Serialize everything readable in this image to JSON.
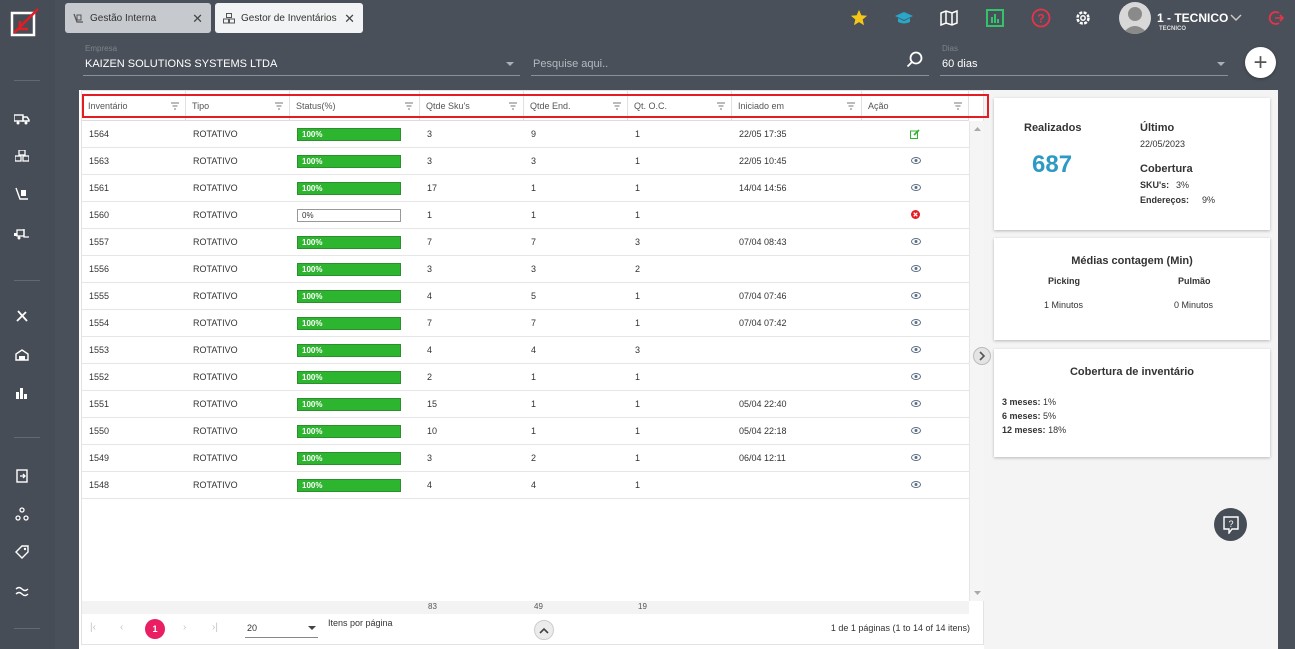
{
  "tabs": [
    {
      "label": "Gestão Interna",
      "active": false,
      "icon": "hand-truck-icon"
    },
    {
      "label": "Gestor de Inventários",
      "active": true,
      "icon": "boxes-icon"
    }
  ],
  "user": {
    "name": "1 - TECNICO",
    "role": "TECNICO"
  },
  "filters": {
    "empresa_label": "Empresa",
    "empresa_value": "KAIZEN SOLUTIONS SYSTEMS LTDA",
    "search_placeholder": "Pesquise aqui..",
    "dias_label": "Dias",
    "dias_value": "60 dias"
  },
  "columns": [
    "Inventário",
    "Tipo",
    "Status(%)",
    "Qtde Sku's",
    "Qtde End.",
    "Qt. O.C.",
    "Iniciado em",
    "Ação"
  ],
  "rows": [
    {
      "id": "1564",
      "tipo": "ROTATIVO",
      "status": "100%",
      "pct": 1,
      "sku": "3",
      "end": "9",
      "oc": "1",
      "iniciado": "22/05 17:35",
      "action": "edit-icon"
    },
    {
      "id": "1563",
      "tipo": "ROTATIVO",
      "status": "100%",
      "pct": 1,
      "sku": "3",
      "end": "3",
      "oc": "1",
      "iniciado": "22/05 10:45",
      "action": "eye-icon"
    },
    {
      "id": "1561",
      "tipo": "ROTATIVO",
      "status": "100%",
      "pct": 1,
      "sku": "17",
      "end": "1",
      "oc": "1",
      "iniciado": "14/04 14:56",
      "action": "eye-icon"
    },
    {
      "id": "1560",
      "tipo": "ROTATIVO",
      "status": "0%",
      "pct": 0,
      "sku": "1",
      "end": "1",
      "oc": "1",
      "iniciado": "",
      "action": "cancel-icon"
    },
    {
      "id": "1557",
      "tipo": "ROTATIVO",
      "status": "100%",
      "pct": 1,
      "sku": "7",
      "end": "7",
      "oc": "3",
      "iniciado": "07/04 08:43",
      "action": "eye-icon"
    },
    {
      "id": "1556",
      "tipo": "ROTATIVO",
      "status": "100%",
      "pct": 1,
      "sku": "3",
      "end": "3",
      "oc": "2",
      "iniciado": "",
      "action": "eye-icon"
    },
    {
      "id": "1555",
      "tipo": "ROTATIVO",
      "status": "100%",
      "pct": 1,
      "sku": "4",
      "end": "5",
      "oc": "1",
      "iniciado": "07/04 07:46",
      "action": "eye-icon"
    },
    {
      "id": "1554",
      "tipo": "ROTATIVO",
      "status": "100%",
      "pct": 1,
      "sku": "7",
      "end": "7",
      "oc": "1",
      "iniciado": "07/04 07:42",
      "action": "eye-icon"
    },
    {
      "id": "1553",
      "tipo": "ROTATIVO",
      "status": "100%",
      "pct": 1,
      "sku": "4",
      "end": "4",
      "oc": "3",
      "iniciado": "",
      "action": "eye-icon"
    },
    {
      "id": "1552",
      "tipo": "ROTATIVO",
      "status": "100%",
      "pct": 1,
      "sku": "2",
      "end": "1",
      "oc": "1",
      "iniciado": "",
      "action": "eye-icon"
    },
    {
      "id": "1551",
      "tipo": "ROTATIVO",
      "status": "100%",
      "pct": 1,
      "sku": "15",
      "end": "1",
      "oc": "1",
      "iniciado": "05/04 22:40",
      "action": "eye-icon"
    },
    {
      "id": "1550",
      "tipo": "ROTATIVO",
      "status": "100%",
      "pct": 1,
      "sku": "10",
      "end": "1",
      "oc": "1",
      "iniciado": "05/04 22:18",
      "action": "eye-icon"
    },
    {
      "id": "1549",
      "tipo": "ROTATIVO",
      "status": "100%",
      "pct": 1,
      "sku": "3",
      "end": "2",
      "oc": "1",
      "iniciado": "06/04 12:11",
      "action": "eye-icon"
    },
    {
      "id": "1548",
      "tipo": "ROTATIVO",
      "status": "100%",
      "pct": 1,
      "sku": "4",
      "end": "4",
      "oc": "1",
      "iniciado": "",
      "action": "eye-icon"
    }
  ],
  "totals": {
    "sku": "83",
    "end": "49",
    "oc": "19"
  },
  "pager": {
    "page": "1",
    "page_size": "20",
    "page_size_label": "Itens por página",
    "summary": "1 de 1 páginas (1 to 14 of 14 itens)"
  },
  "summary": {
    "realizados_label": "Realizados",
    "realizados_value": "687",
    "ultimo_label": "Último",
    "ultimo_value": "22/05/2023",
    "cobertura_label": "Cobertura",
    "skus_label": "SKU's:",
    "skus_value": "3%",
    "enderecos_label": "Endereços:",
    "enderecos_value": "9%"
  },
  "medias": {
    "title": "Médias contagem (Min)",
    "picking_label": "Picking",
    "picking_value": "1 Minutos",
    "pulmao_label": "Pulmão",
    "pulmao_value": "0 Minutos"
  },
  "cobertura_inv": {
    "title": "Cobertura de inventário",
    "items": [
      {
        "label": "3 meses:",
        "value": "1%"
      },
      {
        "label": "6 meses:",
        "value": "5%"
      },
      {
        "label": "12 meses:",
        "value": "18%"
      }
    ]
  },
  "colors": {
    "accent": "#2e9ac4",
    "success": "#2db52f",
    "danger": "#e41c23",
    "pager": "#e91e63",
    "sidebar": "#474d56"
  }
}
